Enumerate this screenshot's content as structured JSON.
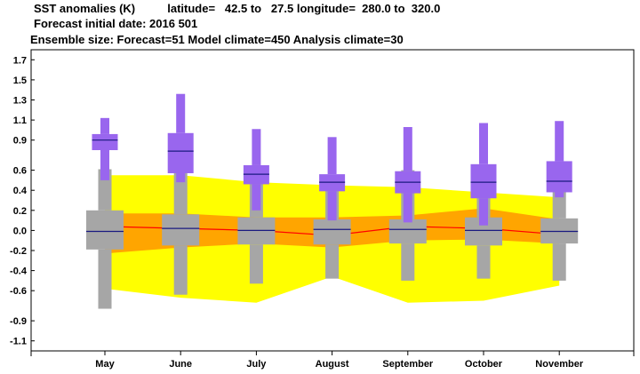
{
  "header": {
    "line1": "SST anomalies (K)          latitude=   42.5 to   27.5 longitude=  280.0 to  320.0",
    "line2": "Forecast initial date: 2016 501",
    "line3": "Ensemble size: Forecast=51 Model climate=450 Analysis climate=30"
  },
  "colors": {
    "climate_outer": "#ffff00",
    "climate_inner": "#ffa500",
    "climate_median": "#ff0000",
    "forecast_box": "#a6a6a6",
    "analysis_box": "#9966ee",
    "median_line": "#1a1a80"
  },
  "chart_data": {
    "type": "box",
    "categories": [
      "May",
      "June",
      "July",
      "August",
      "September",
      "October",
      "November"
    ],
    "ylim": [
      -1.2,
      1.8
    ],
    "yticks": [
      "1.7",
      "1.5",
      "1.3",
      "1.1",
      "0.9",
      "0.6",
      "0.4",
      "0.2",
      "0.0",
      "-0.2",
      "-0.4",
      "-0.6",
      "-0.9",
      "-1.1"
    ],
    "ytick_values": [
      1.7,
      1.5,
      1.3,
      1.1,
      0.9,
      0.6,
      0.4,
      0.2,
      0.0,
      -0.2,
      -0.4,
      -0.6,
      -0.9,
      -1.1
    ],
    "model_climate_band_outer": {
      "upper": [
        0.55,
        0.55,
        0.48,
        0.45,
        0.43,
        0.38,
        0.33
      ],
      "lower": [
        -0.58,
        -0.67,
        -0.72,
        -0.46,
        -0.72,
        -0.7,
        -0.55
      ]
    },
    "model_climate_band_inner": {
      "upper": [
        0.17,
        0.17,
        0.13,
        0.13,
        0.15,
        0.22,
        0.11
      ],
      "lower": [
        -0.23,
        -0.17,
        -0.13,
        -0.17,
        -0.1,
        -0.09,
        -0.13
      ]
    },
    "model_climate_median": [
      0.04,
      0.02,
      0.0,
      -0.05,
      0.04,
      0.02,
      -0.04
    ],
    "forecast": {
      "whisker_high": [
        0.61,
        0.76,
        0.53,
        0.53,
        0.6,
        0.55,
        0.64
      ],
      "q3": [
        0.2,
        0.16,
        0.13,
        0.11,
        0.11,
        0.13,
        0.12
      ],
      "median": [
        -0.01,
        0.02,
        0.0,
        0.01,
        0.01,
        0.0,
        -0.01
      ],
      "q1": [
        -0.19,
        -0.15,
        -0.14,
        -0.14,
        -0.13,
        -0.15,
        -0.13
      ],
      "whisker_low": [
        -0.78,
        -0.64,
        -0.53,
        -0.48,
        -0.5,
        -0.48,
        -0.5
      ]
    },
    "analysis": {
      "whisker_high": [
        1.12,
        1.36,
        1.01,
        0.93,
        1.03,
        1.07,
        1.09
      ],
      "q3": [
        0.96,
        0.97,
        0.65,
        0.56,
        0.59,
        0.66,
        0.69
      ],
      "median": [
        0.9,
        0.79,
        0.56,
        0.48,
        0.48,
        0.48,
        0.49
      ],
      "q1": [
        0.8,
        0.57,
        0.46,
        0.39,
        0.37,
        0.32,
        0.38
      ],
      "whisker_low": [
        0.5,
        0.48,
        0.2,
        0.1,
        0.08,
        0.05,
        0.33
      ]
    }
  }
}
